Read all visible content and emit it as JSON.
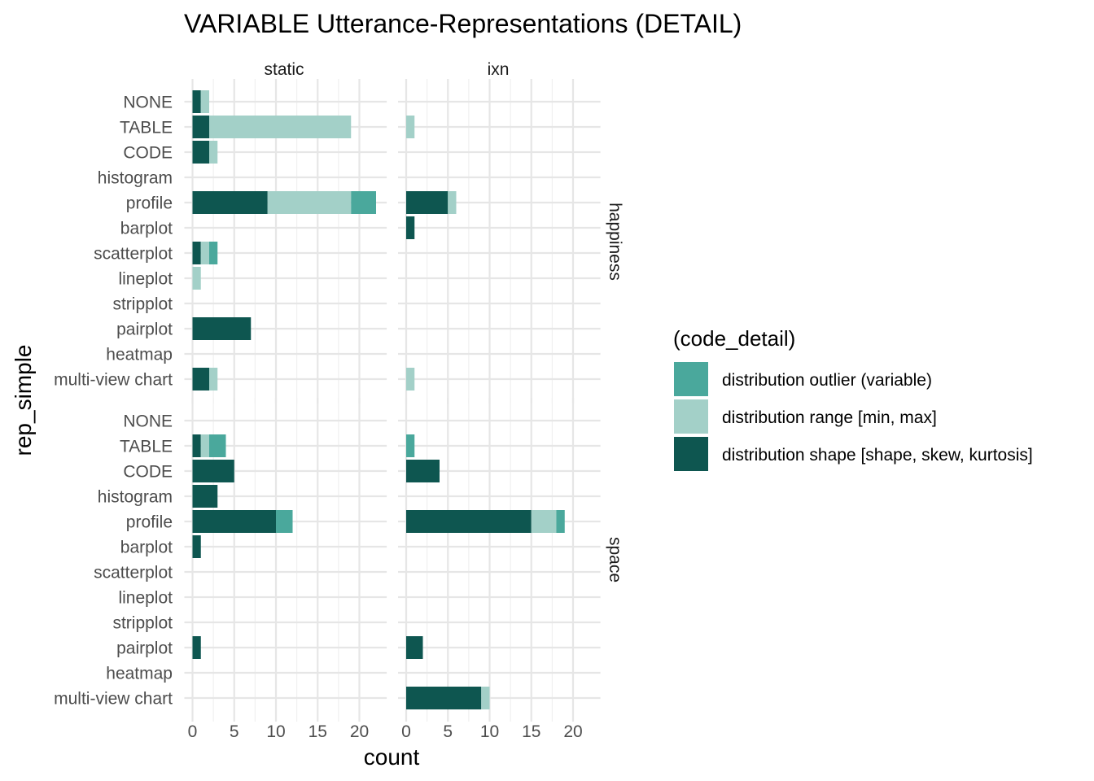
{
  "chart_data": {
    "type": "bar",
    "orientation": "horizontal",
    "stacked": true,
    "title": "VARIABLE Utterance-Representations (DETAIL)",
    "xlabel": "count",
    "ylabel": "rep_simple",
    "xlim": [
      0,
      22.5
    ],
    "x_ticks": [
      0,
      5,
      10,
      15,
      20
    ],
    "grid": true,
    "legend_position": "right",
    "legend_title": "(code_detail)",
    "categories": [
      "NONE",
      "TABLE",
      "CODE",
      "histogram",
      "profile",
      "barplot",
      "scatterplot",
      "lineplot",
      "stripplot",
      "pairplot",
      "heatmap",
      "multi-view chart"
    ],
    "columns": [
      "static",
      "ixn"
    ],
    "rows": [
      "happiness",
      "space"
    ],
    "series": [
      {
        "name": "distribution shape [shape, skew, kurtosis]",
        "color": "#0e5650"
      },
      {
        "name": "distribution range [min, max]",
        "color": "#a3d0c8"
      },
      {
        "name": "distribution outlier (variable)",
        "color": "#4aa89c"
      }
    ],
    "legend_order": [
      2,
      1,
      0
    ],
    "panels": [
      {
        "column": "static",
        "row": "happiness",
        "values": [
          [
            1,
            1,
            0
          ],
          [
            2,
            17,
            0
          ],
          [
            2,
            1,
            0
          ],
          [
            0,
            0,
            0
          ],
          [
            9,
            10,
            3
          ],
          [
            0,
            0,
            0
          ],
          [
            1,
            1,
            1
          ],
          [
            0,
            1,
            0
          ],
          [
            0,
            0,
            0
          ],
          [
            7,
            0,
            0
          ],
          [
            0,
            0,
            0
          ],
          [
            2,
            1,
            0
          ]
        ]
      },
      {
        "column": "ixn",
        "row": "happiness",
        "values": [
          [
            0,
            0,
            0
          ],
          [
            0,
            1,
            0
          ],
          [
            0,
            0,
            0
          ],
          [
            0,
            0,
            0
          ],
          [
            5,
            1,
            0
          ],
          [
            1,
            0,
            0
          ],
          [
            0,
            0,
            0
          ],
          [
            0,
            0,
            0
          ],
          [
            0,
            0,
            0
          ],
          [
            0,
            0,
            0
          ],
          [
            0,
            0,
            0
          ],
          [
            0,
            1,
            0
          ]
        ]
      },
      {
        "column": "static",
        "row": "space",
        "values": [
          [
            0,
            0,
            0
          ],
          [
            1,
            1,
            2
          ],
          [
            5,
            0,
            0
          ],
          [
            3,
            0,
            0
          ],
          [
            10,
            0,
            2
          ],
          [
            1,
            0,
            0
          ],
          [
            0,
            0,
            0
          ],
          [
            0,
            0,
            0
          ],
          [
            0,
            0,
            0
          ],
          [
            1,
            0,
            0
          ],
          [
            0,
            0,
            0
          ],
          [
            0,
            0,
            0
          ]
        ]
      },
      {
        "column": "ixn",
        "row": "space",
        "values": [
          [
            0,
            0,
            0
          ],
          [
            0,
            0,
            1
          ],
          [
            4,
            0,
            0
          ],
          [
            0,
            0,
            0
          ],
          [
            15,
            3,
            1
          ],
          [
            0,
            0,
            0
          ],
          [
            0,
            0,
            0
          ],
          [
            0,
            0,
            0
          ],
          [
            0,
            0,
            0
          ],
          [
            2,
            0,
            0
          ],
          [
            0,
            0,
            0
          ],
          [
            9,
            1,
            0
          ]
        ]
      }
    ]
  }
}
